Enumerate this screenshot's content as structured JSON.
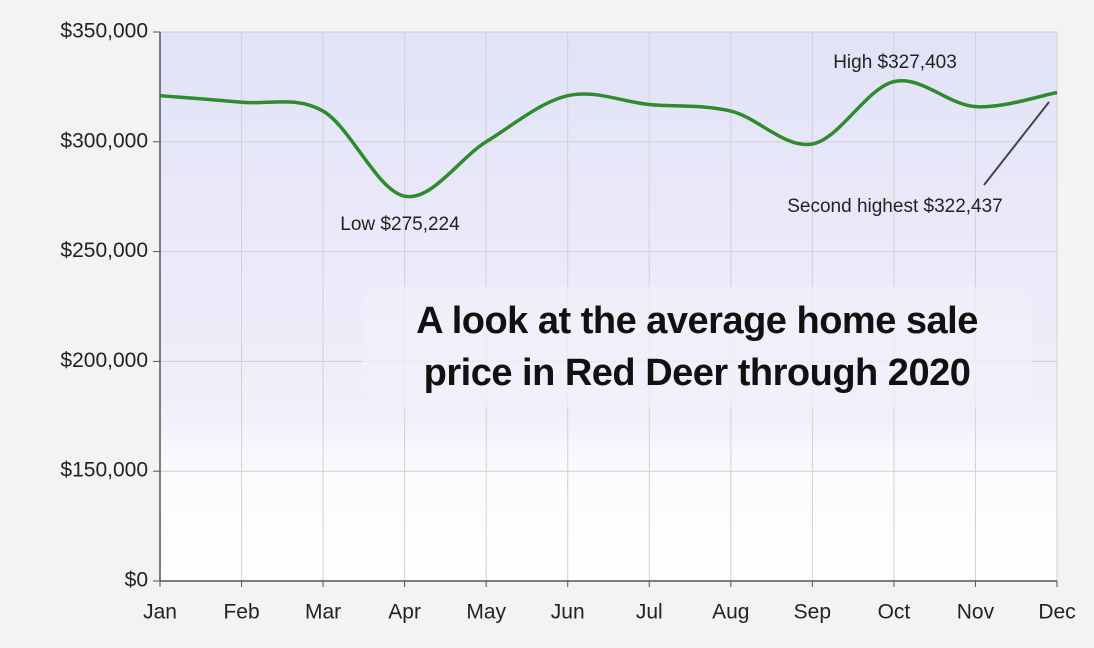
{
  "chart_data": {
    "type": "line",
    "title": [
      "A look at the average home sale",
      "price in Red Deer through 2020"
    ],
    "categories": [
      "Jan",
      "Feb",
      "Mar",
      "Apr",
      "May",
      "Jun",
      "Jul",
      "Aug",
      "Sep",
      "Oct",
      "Nov",
      "Dec"
    ],
    "values": [
      321000,
      318000,
      314000,
      275224,
      300000,
      321000,
      317000,
      314000,
      299000,
      327403,
      316000,
      322437
    ],
    "color": "#2e8b2e",
    "ylim": [
      0,
      350000
    ],
    "yticks": [
      {
        "value": 0,
        "label": "$0"
      },
      {
        "value": 150000,
        "label": "$150,000"
      },
      {
        "value": 200000,
        "label": "$200,000"
      },
      {
        "value": 250000,
        "label": "$250,000"
      },
      {
        "value": 300000,
        "label": "$300,000"
      },
      {
        "value": 350000,
        "label": "$350,000"
      }
    ],
    "grid": true,
    "annotations": [
      "Low $275,224",
      "High $327,403",
      "Second highest $322,437"
    ]
  }
}
